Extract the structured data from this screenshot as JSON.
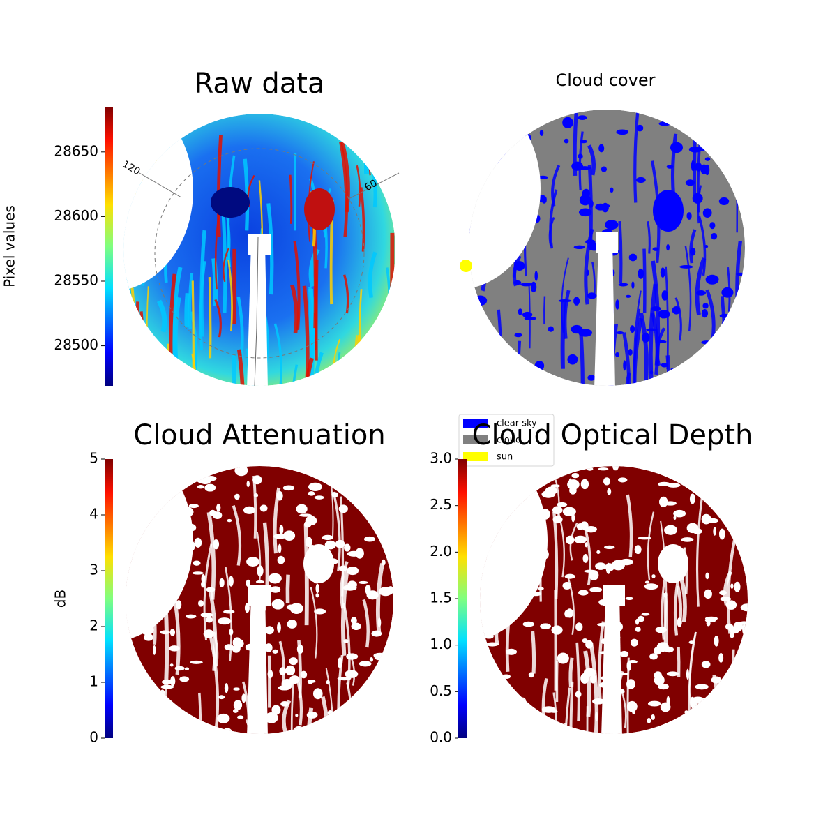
{
  "chart_data": [
    {
      "type": "image",
      "title": "Raw data",
      "ylabel": "Pixel values",
      "colormap": "jet",
      "ylim": [
        28469,
        28685
      ],
      "yticks": [
        28500,
        28550,
        28600,
        28650
      ],
      "annotations": [
        "120",
        "60"
      ]
    },
    {
      "type": "image",
      "title": "Cloud cover",
      "series": [
        {
          "name": "clear sky",
          "color": "#0000ff"
        },
        {
          "name": "cloud",
          "color": "#808080"
        },
        {
          "name": "sun",
          "color": "#ffff00"
        }
      ]
    },
    {
      "type": "image",
      "title": "Cloud Attenuation",
      "ylabel": "dB",
      "colormap": "jet",
      "ylim": [
        0,
        5
      ],
      "yticks": [
        0,
        1,
        2,
        3,
        4,
        5
      ]
    },
    {
      "type": "image",
      "title": "Cloud Optical Depth",
      "colormap": "jet",
      "ylim": [
        0,
        3
      ],
      "yticks": [
        {
          "value": 0,
          "label": "0.0"
        },
        0.5,
        {
          "value": 1,
          "label": "1.0"
        },
        1.5,
        {
          "value": 2,
          "label": "2.0"
        },
        2.5,
        {
          "value": 3,
          "label": "3.0"
        }
      ]
    }
  ]
}
